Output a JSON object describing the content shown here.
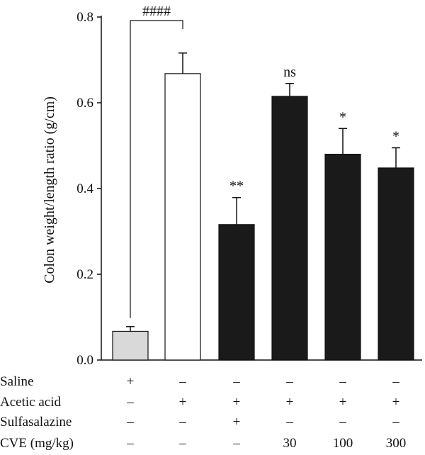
{
  "chart_data": {
    "type": "bar",
    "title": "",
    "ylabel": "Colon weight/length ratio (g/cm)",
    "ylim": [
      0,
      0.8
    ],
    "yticks": [
      "0.0",
      "0.2",
      "0.4",
      "0.6",
      "0.8"
    ],
    "ytick_values": [
      0,
      0.2,
      0.4,
      0.6,
      0.8
    ],
    "groups": [
      {
        "value": 0.067,
        "error": 0.011,
        "color": "#d9d9d9",
        "sig": ""
      },
      {
        "value": 0.668,
        "error": 0.048,
        "color": "#ffffff",
        "sig": ""
      },
      {
        "value": 0.316,
        "error": 0.063,
        "color": "#1a1a1a",
        "sig": "**"
      },
      {
        "value": 0.615,
        "error": 0.03,
        "color": "#1a1a1a",
        "sig": "ns"
      },
      {
        "value": 0.48,
        "error": 0.06,
        "color": "#1a1a1a",
        "sig": "*"
      },
      {
        "value": 0.448,
        "error": 0.047,
        "color": "#1a1a1a",
        "sig": "*"
      }
    ],
    "bracket": {
      "from": 0,
      "to": 1,
      "label": "####"
    },
    "condition_rows": [
      {
        "label": "Saline",
        "values": [
          "+",
          "–",
          "–",
          "–",
          "–",
          "–"
        ]
      },
      {
        "label": "Acetic acid",
        "values": [
          "–",
          "+",
          "+",
          "+",
          "+",
          "+"
        ]
      },
      {
        "label": "Sulfasalazine",
        "values": [
          "–",
          "–",
          "+",
          "–",
          "–",
          "–"
        ]
      },
      {
        "label": "CVE (mg/kg)",
        "values": [
          "–",
          "–",
          "–",
          "30",
          "100",
          "300"
        ]
      }
    ]
  }
}
